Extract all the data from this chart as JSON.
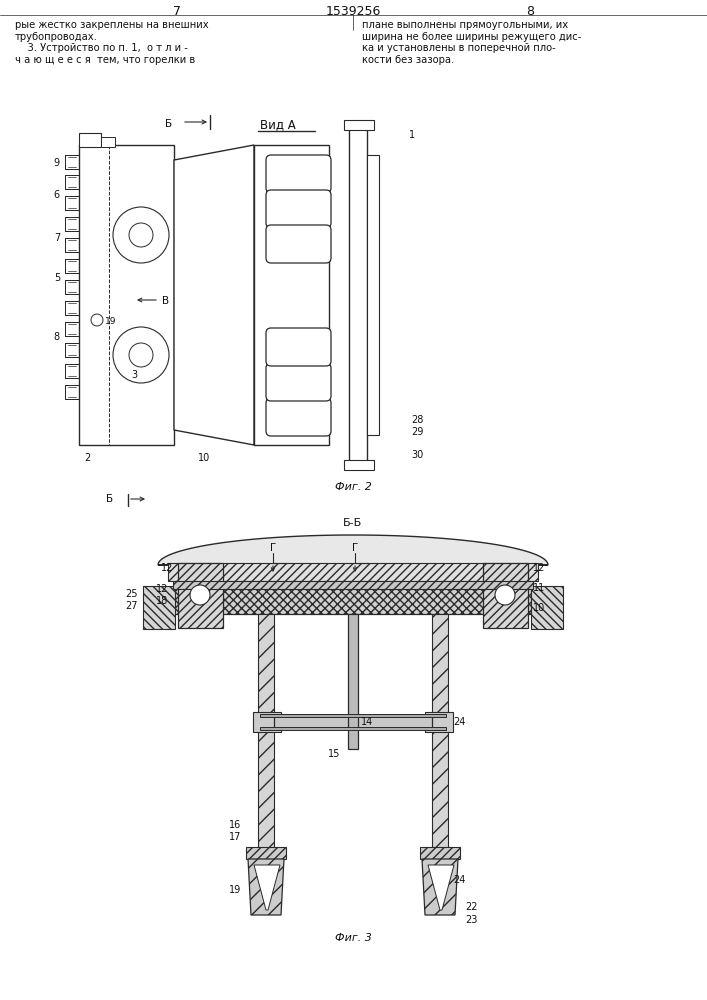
{
  "page_number_left": "7",
  "page_number_center": "1539256",
  "page_number_right": "8",
  "text_left": "рые жестко закреплены на внешних\nтрубопроводах.\n    3. Устройство по п. 1,  о т л и -\nч а ю щ е е с я  тем, что горелки в",
  "text_right": "плане выполнены прямоугольными, их\nширина не более ширины режущего дис-\nка и установлены в поперечной пло-\nкости без зазора.",
  "fig2_label": "Фиг. 2",
  "fig3_label": "Фиг. 3",
  "view_label": "Вид А",
  "section_label": "Б-Б",
  "bg_color": "#ffffff",
  "line_color": "#2a2a2a",
  "hatch_color": "#444444",
  "text_color": "#111111"
}
